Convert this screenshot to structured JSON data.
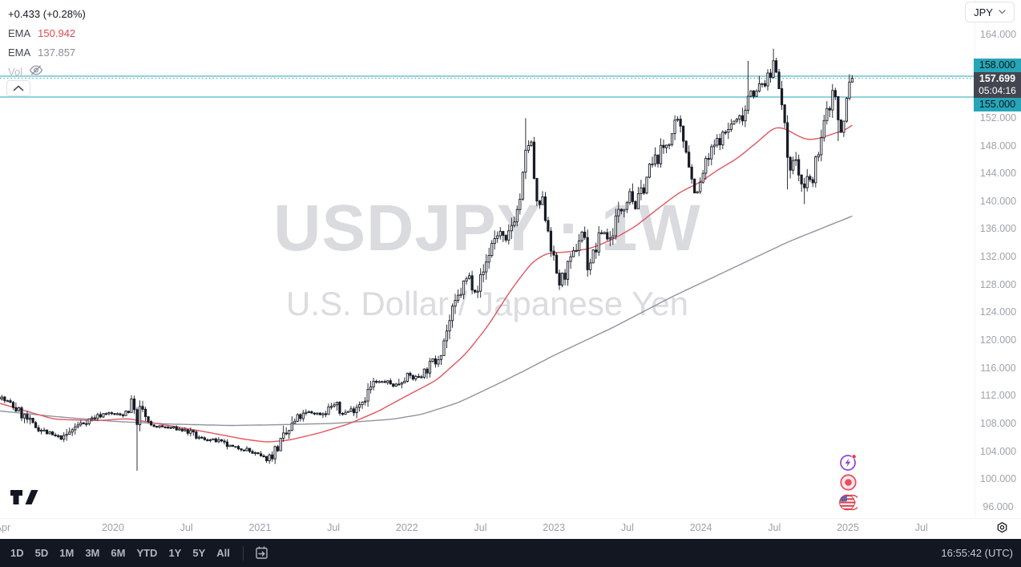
{
  "header": {
    "change_text": "+0.433 (+0.28%)",
    "indicators": [
      {
        "label": "EMA",
        "value": "150.942",
        "color": "#e0484f"
      },
      {
        "label": "EMA",
        "value": "137.857",
        "color": "#8a8e97"
      }
    ],
    "volume_label": "Vol",
    "currency_selector": "JPY"
  },
  "watermark": {
    "line1": "USDJPY · 1W",
    "line2": "U.S. Dollar / Japanese Yen"
  },
  "price_scale": {
    "ticks": [
      "164.000",
      "152.000",
      "148.000",
      "144.000",
      "140.000",
      "136.000",
      "132.000",
      "128.000",
      "124.000",
      "120.000",
      "116.000",
      "112.000",
      "108.000",
      "104.000",
      "100.000",
      "96.000"
    ],
    "labels": {
      "level_upper": "158.000",
      "last_price": "157.699",
      "countdown": "05:04:16",
      "level_lower": "155.000"
    }
  },
  "time_scale": {
    "labels": [
      [
        "Apr",
        2019.25
      ],
      [
        "2020",
        2020
      ],
      [
        "Jul",
        2020.5
      ],
      [
        "2021",
        2021
      ],
      [
        "Jul",
        2021.5
      ],
      [
        "2022",
        2022
      ],
      [
        "Jul",
        2022.5
      ],
      [
        "2023",
        2023
      ],
      [
        "Jul",
        2023.5
      ],
      [
        "2024",
        2024
      ],
      [
        "Jul",
        2024.5
      ],
      [
        "2025",
        2025
      ],
      [
        "Jul",
        2025.5
      ]
    ]
  },
  "toolbar": {
    "ranges": [
      "1D",
      "5D",
      "1M",
      "3M",
      "6M",
      "YTD",
      "1Y",
      "5Y",
      "All"
    ],
    "clock": "16:55:42 (UTC)"
  },
  "colors": {
    "accent_teal": "#26a5b8",
    "label_dark_bg": "#434651",
    "candle": "#161a25",
    "ema_fast": "#e2555e",
    "ema_slow": "#9093a0",
    "toolbar_bg": "#131722",
    "badge_red": "#f23645",
    "event_purple": "#8d4bdb",
    "event_rose": "#ec4d5c"
  },
  "chart_data": {
    "type": "candlestick",
    "symbol": "USDJPY",
    "timeframe": "1W",
    "title": "U.S. Dollar / Japanese Yen, weekly candles with two EMA overlays",
    "last_price": 157.699,
    "change": 0.433,
    "change_pct": 0.28,
    "levels": [
      158.0,
      155.0
    ],
    "y_axis": {
      "min": 96,
      "max": 164,
      "tick_step": 4
    },
    "x_axis": {
      "start": 2019.225,
      "end": 2025.03,
      "grid": false
    },
    "ema_fast_last": 150.942,
    "ema_slow_last": 137.857,
    "price_anchors": [
      [
        2019.23,
        111.8
      ],
      [
        2019.33,
        110.3
      ],
      [
        2019.45,
        107.8
      ],
      [
        2019.58,
        106.3
      ],
      [
        2019.66,
        105.8
      ],
      [
        2019.75,
        107.6
      ],
      [
        2019.83,
        108.5
      ],
      [
        2019.95,
        109.5
      ],
      [
        2020.05,
        109.2
      ],
      [
        2020.1,
        110.0
      ],
      [
        2020.14,
        111.8
      ],
      [
        2020.16,
        107.0
      ],
      [
        2020.19,
        110.7
      ],
      [
        2020.24,
        107.7
      ],
      [
        2020.33,
        107.5
      ],
      [
        2020.42,
        107.3
      ],
      [
        2020.5,
        106.9
      ],
      [
        2020.58,
        105.9
      ],
      [
        2020.7,
        105.5
      ],
      [
        2020.8,
        104.6
      ],
      [
        2020.9,
        104.3
      ],
      [
        2021.0,
        103.2
      ],
      [
        2021.05,
        102.8
      ],
      [
        2021.15,
        105.4
      ],
      [
        2021.25,
        108.6
      ],
      [
        2021.33,
        109.6
      ],
      [
        2021.42,
        109.3
      ],
      [
        2021.5,
        110.8
      ],
      [
        2021.55,
        109.3
      ],
      [
        2021.63,
        110.0
      ],
      [
        2021.7,
        111.5
      ],
      [
        2021.78,
        113.9
      ],
      [
        2021.85,
        114.0
      ],
      [
        2021.92,
        113.4
      ],
      [
        2022.0,
        115.1
      ],
      [
        2022.05,
        114.4
      ],
      [
        2022.12,
        115.5
      ],
      [
        2022.2,
        117.3
      ],
      [
        2022.24,
        119.2
      ],
      [
        2022.28,
        122.1
      ],
      [
        2022.33,
        125.1
      ],
      [
        2022.38,
        127.7
      ],
      [
        2022.42,
        129.3
      ],
      [
        2022.47,
        127.1
      ],
      [
        2022.52,
        129.8
      ],
      [
        2022.58,
        134.1
      ],
      [
        2022.63,
        135.7
      ],
      [
        2022.67,
        133.5
      ],
      [
        2022.72,
        137.3
      ],
      [
        2022.76,
        139.1
      ],
      [
        2022.79,
        143.7
      ],
      [
        2022.82,
        148.6
      ],
      [
        2022.85,
        147.7
      ],
      [
        2022.88,
        138.9
      ],
      [
        2022.92,
        139.9
      ],
      [
        2022.96,
        136.2
      ],
      [
        2023.0,
        131.1
      ],
      [
        2023.04,
        128.0
      ],
      [
        2023.08,
        129.9
      ],
      [
        2023.12,
        131.2
      ],
      [
        2023.16,
        134.0
      ],
      [
        2023.2,
        136.1
      ],
      [
        2023.23,
        130.6
      ],
      [
        2023.28,
        132.8
      ],
      [
        2023.33,
        136.0
      ],
      [
        2023.38,
        134.3
      ],
      [
        2023.42,
        137.4
      ],
      [
        2023.47,
        139.4
      ],
      [
        2023.52,
        141.8
      ],
      [
        2023.55,
        138.8
      ],
      [
        2023.6,
        141.5
      ],
      [
        2023.65,
        144.6
      ],
      [
        2023.7,
        146.2
      ],
      [
        2023.75,
        147.8
      ],
      [
        2023.8,
        149.4
      ],
      [
        2023.84,
        151.5
      ],
      [
        2023.87,
        149.4
      ],
      [
        2023.9,
        147.8
      ],
      [
        2023.94,
        142.8
      ],
      [
        2023.98,
        141.0
      ],
      [
        2024.02,
        144.6
      ],
      [
        2024.06,
        146.5
      ],
      [
        2024.1,
        148.3
      ],
      [
        2024.14,
        149.1
      ],
      [
        2024.18,
        150.3
      ],
      [
        2024.22,
        151.4
      ],
      [
        2024.26,
        151.8
      ],
      [
        2024.3,
        153.2
      ],
      [
        2024.33,
        156.3
      ],
      [
        2024.37,
        155.2
      ],
      [
        2024.41,
        156.8
      ],
      [
        2024.44,
        157.0
      ],
      [
        2024.47,
        157.8
      ],
      [
        2024.5,
        160.8
      ],
      [
        2024.53,
        157.4
      ],
      [
        2024.56,
        152.0
      ],
      [
        2024.59,
        146.6
      ],
      [
        2024.62,
        144.7
      ],
      [
        2024.64,
        146.9
      ],
      [
        2024.67,
        143.4
      ],
      [
        2024.7,
        140.9
      ],
      [
        2024.73,
        143.8
      ],
      [
        2024.76,
        142.2
      ],
      [
        2024.79,
        146.9
      ],
      [
        2024.82,
        149.1
      ],
      [
        2024.85,
        152.3
      ],
      [
        2024.88,
        154.1
      ],
      [
        2024.9,
        156.3
      ],
      [
        2024.92,
        154.7
      ],
      [
        2024.94,
        150.0
      ],
      [
        2024.96,
        149.8
      ],
      [
        2024.98,
        152.4
      ],
      [
        2025.0,
        156.5
      ],
      [
        2025.02,
        157.3
      ],
      [
        2025.03,
        157.699
      ]
    ],
    "ema_fast_anchors": [
      [
        2019.23,
        110.9
      ],
      [
        2019.6,
        108.6
      ],
      [
        2019.9,
        108.4
      ],
      [
        2020.1,
        108.7
      ],
      [
        2020.35,
        107.8
      ],
      [
        2020.6,
        106.9
      ],
      [
        2020.9,
        105.7
      ],
      [
        2021.05,
        105.3
      ],
      [
        2021.2,
        105.6
      ],
      [
        2021.4,
        106.6
      ],
      [
        2021.6,
        107.9
      ],
      [
        2021.8,
        109.7
      ],
      [
        2022.0,
        112.0
      ],
      [
        2022.2,
        114.2
      ],
      [
        2022.4,
        118.0
      ],
      [
        2022.55,
        122.0
      ],
      [
        2022.7,
        127.0
      ],
      [
        2022.85,
        131.2
      ],
      [
        2022.95,
        132.5
      ],
      [
        2023.1,
        132.7
      ],
      [
        2023.25,
        133.2
      ],
      [
        2023.4,
        134.5
      ],
      [
        2023.55,
        136.3
      ],
      [
        2023.7,
        138.8
      ],
      [
        2023.85,
        141.2
      ],
      [
        2024.0,
        142.8
      ],
      [
        2024.1,
        144.3
      ],
      [
        2024.25,
        146.2
      ],
      [
        2024.4,
        148.8
      ],
      [
        2024.5,
        150.7
      ],
      [
        2024.57,
        150.5
      ],
      [
        2024.65,
        149.5
      ],
      [
        2024.72,
        148.8
      ],
      [
        2024.8,
        149.0
      ],
      [
        2024.9,
        149.7
      ],
      [
        2025.0,
        150.4
      ],
      [
        2025.03,
        150.942
      ]
    ],
    "ema_slow_anchors": [
      [
        2019.23,
        109.8
      ],
      [
        2019.6,
        109.0
      ],
      [
        2020.0,
        108.3
      ],
      [
        2020.4,
        107.9
      ],
      [
        2020.8,
        107.7
      ],
      [
        2021.1,
        107.8
      ],
      [
        2021.5,
        108.0
      ],
      [
        2021.9,
        108.6
      ],
      [
        2022.1,
        109.3
      ],
      [
        2022.35,
        111.0
      ],
      [
        2022.6,
        113.5
      ],
      [
        2022.8,
        115.6
      ],
      [
        2023.0,
        117.8
      ],
      [
        2023.2,
        119.8
      ],
      [
        2023.4,
        121.8
      ],
      [
        2023.6,
        124.0
      ],
      [
        2023.8,
        126.2
      ],
      [
        2024.0,
        128.2
      ],
      [
        2024.2,
        130.2
      ],
      [
        2024.4,
        132.2
      ],
      [
        2024.6,
        134.2
      ],
      [
        2024.8,
        135.9
      ],
      [
        2025.0,
        137.6
      ],
      [
        2025.03,
        137.857
      ]
    ],
    "wick_events": [
      [
        2020.16,
        "low",
        101.18
      ],
      [
        2021.05,
        "low",
        102.59
      ],
      [
        2022.8,
        "high",
        151.95
      ],
      [
        2023.04,
        "low",
        127.22
      ],
      [
        2023.84,
        "high",
        151.91
      ],
      [
        2024.33,
        "high",
        160.2
      ],
      [
        2024.5,
        "high",
        161.95
      ],
      [
        2024.59,
        "low",
        141.68
      ],
      [
        2024.7,
        "low",
        139.58
      ],
      [
        2024.94,
        "low",
        148.65
      ],
      [
        2025.01,
        "high",
        158.3
      ]
    ]
  }
}
